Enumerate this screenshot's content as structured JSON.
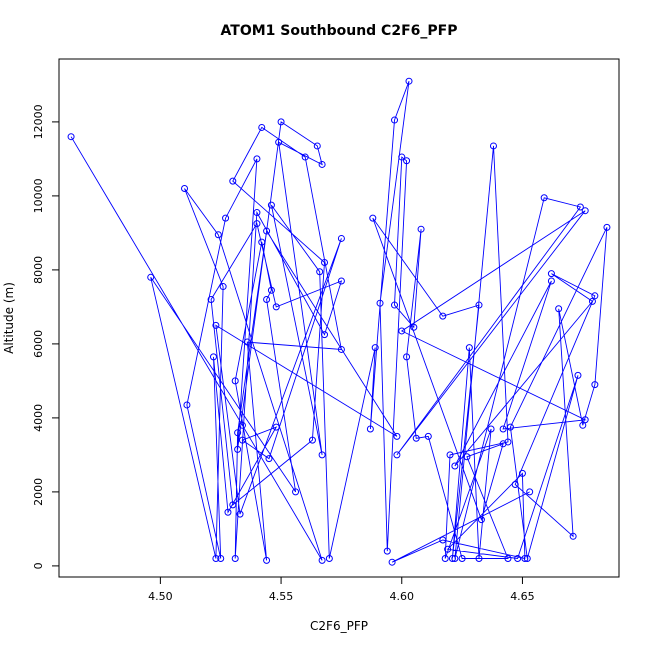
{
  "chart_data": {
    "type": "line",
    "title": "ATOM1 Southbound C2F6_PFP",
    "xlabel": "C2F6_PFP",
    "ylabel": "Altitude (m)",
    "xlim": [
      4.458,
      4.69
    ],
    "ylim": [
      -300,
      13700
    ],
    "x_ticks": [
      4.5,
      4.55,
      4.6,
      4.65
    ],
    "x_tick_labels": [
      "4.50",
      "4.55",
      "4.60",
      "4.65"
    ],
    "y_ticks": [
      0,
      2000,
      4000,
      6000,
      8000,
      10000,
      12000
    ],
    "y_tick_labels": [
      "0",
      "2000",
      "4000",
      "6000",
      "8000",
      "10000",
      "12000"
    ],
    "grid": false,
    "series_color": "#0000ff",
    "marker": "open-circle",
    "series": [
      {
        "x": [
          4.463,
          4.534,
          4.567,
          4.524,
          4.51,
          4.526,
          4.523,
          4.496,
          4.556,
          4.544,
          4.546,
          4.542,
          4.531,
          4.544,
          4.536,
          4.575,
          4.56,
          4.542,
          4.53,
          4.568,
          4.563,
          4.53,
          4.521,
          4.54,
          4.548,
          4.575,
          4.568,
          4.54,
          4.531,
          4.532,
          4.544,
          4.598,
          4.523,
          4.533,
          4.575,
          4.545,
          4.534,
          4.548,
          4.528,
          4.522,
          4.525,
          4.511,
          4.527,
          4.54,
          4.532,
          4.55,
          4.565,
          4.567,
          4.549,
          4.567,
          4.546,
          4.566,
          4.57,
          4.589,
          4.587,
          4.597,
          4.603,
          4.591,
          4.594,
          4.602,
          4.6,
          4.597,
          4.605,
          4.608,
          4.602,
          4.606,
          4.611,
          4.625,
          4.644,
          4.627,
          4.642,
          4.633,
          4.588,
          4.617,
          4.632,
          4.621,
          4.628,
          4.632,
          4.637,
          4.618,
          4.62,
          4.644,
          4.638,
          4.622,
          4.659,
          4.674,
          4.598,
          4.676,
          4.6,
          4.676,
          4.642,
          4.662,
          4.622,
          4.679,
          4.662,
          4.68,
          4.647,
          4.671,
          4.665,
          4.675,
          4.68,
          4.685,
          4.645,
          4.652,
          4.673,
          4.648,
          4.619,
          4.65,
          4.651,
          4.617,
          4.596,
          4.653
        ],
        "y": [
          11600,
          3800,
          150,
          8950,
          10200,
          7550,
          200,
          7800,
          2000,
          7200,
          7450,
          8750,
          5000,
          150,
          6050,
          5850,
          11050,
          11850,
          10400,
          8200,
          3400,
          1650,
          7200,
          9250,
          7000,
          7700,
          6250,
          9550,
          200,
          3600,
          9050,
          3500,
          6500,
          1400,
          8850,
          2900,
          3400,
          3750,
          1450,
          5650,
          200,
          4350,
          9400,
          11000,
          3150,
          12000,
          11350,
          10850,
          11450,
          3000,
          9750,
          7950,
          200,
          5900,
          3700,
          12050,
          13100,
          7100,
          400,
          10950,
          11050,
          7050,
          6450,
          9100,
          5650,
          3450,
          3500,
          200,
          200,
          2950,
          3300,
          1250,
          9400,
          6750,
          7050,
          200,
          5900,
          200,
          3700,
          200,
          3000,
          3350,
          11350,
          200,
          9950,
          9700,
          3000,
          9600,
          6350,
          3950,
          3700,
          7700,
          2700,
          7150,
          7900,
          7300,
          2200,
          800,
          6950,
          3800,
          4900,
          9150,
          3750,
          200,
          5150,
          200,
          450,
          2500,
          200,
          700,
          100,
          2000
        ]
      }
    ]
  }
}
